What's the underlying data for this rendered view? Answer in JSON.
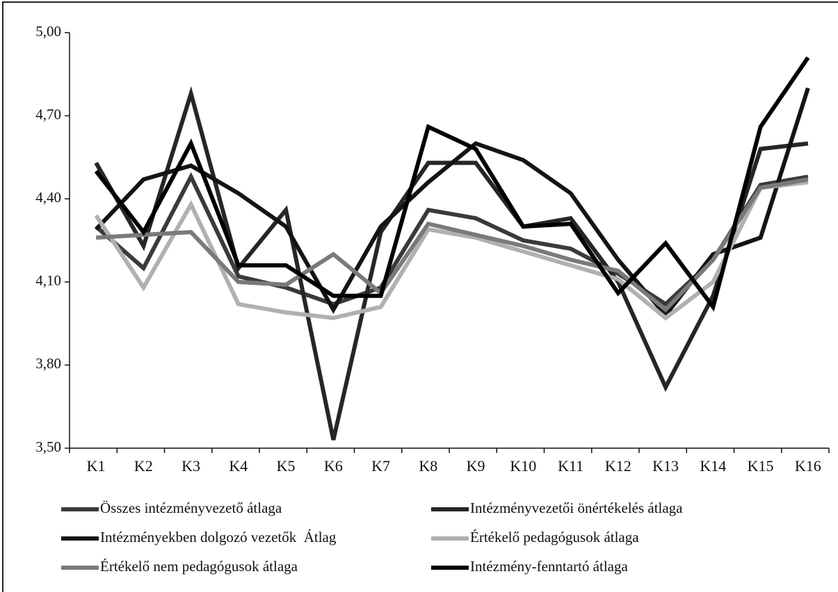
{
  "chart_data": {
    "type": "line",
    "categories": [
      "K1",
      "K2",
      "K3",
      "K4",
      "K5",
      "K6",
      "K7",
      "K8",
      "K9",
      "K10",
      "K11",
      "K12",
      "K13",
      "K14",
      "K15",
      "K16"
    ],
    "ylim": [
      3.5,
      5.0
    ],
    "yticks": [
      {
        "value": 3.5,
        "label": "3,50"
      },
      {
        "value": 3.8,
        "label": "3,80"
      },
      {
        "value": 4.1,
        "label": "4,10"
      },
      {
        "value": 4.4,
        "label": "4,40"
      },
      {
        "value": 4.7,
        "label": "4,70"
      },
      {
        "value": 5.0,
        "label": "5,00"
      }
    ],
    "legend": "bottom",
    "series": [
      {
        "name": "Összes intézményvezető átlaga",
        "color": "#3a3a3a",
        "values": [
          4.3,
          4.15,
          4.48,
          4.12,
          4.08,
          4.02,
          4.08,
          4.36,
          4.33,
          4.25,
          4.22,
          4.13,
          4.02,
          4.18,
          4.45,
          4.48
        ]
      },
      {
        "name": "Intézményvezetői önértékelés átlaga",
        "color": "#262626",
        "values": [
          4.53,
          4.23,
          4.78,
          4.15,
          4.36,
          3.53,
          4.28,
          4.53,
          4.53,
          4.3,
          4.33,
          4.1,
          3.72,
          4.05,
          4.58,
          4.6
        ]
      },
      {
        "name": "Intézményekben dolgozó vezetők  Átlag",
        "color": "#141414",
        "values": [
          4.29,
          4.47,
          4.52,
          4.42,
          4.3,
          4.0,
          4.3,
          4.46,
          4.6,
          4.54,
          4.42,
          4.18,
          3.98,
          4.2,
          4.26,
          4.8
        ]
      },
      {
        "name": "Értékelő pedagógusok átlaga",
        "color": "#b0b0b0",
        "values": [
          4.34,
          4.08,
          4.38,
          4.02,
          3.99,
          3.97,
          4.01,
          4.29,
          4.26,
          4.21,
          4.16,
          4.11,
          3.97,
          4.1,
          4.44,
          4.46
        ]
      },
      {
        "name": "Értékelő nem pedagógusok átlaga",
        "color": "#7a7a7a",
        "values": [
          4.26,
          4.27,
          4.28,
          4.1,
          4.09,
          4.2,
          4.06,
          4.31,
          4.27,
          4.23,
          4.18,
          4.14,
          4.0,
          4.18,
          4.44,
          4.47
        ]
      },
      {
        "name": "Intézmény-fenntartó átlaga",
        "color": "#000000",
        "values": [
          4.5,
          4.28,
          4.6,
          4.16,
          4.16,
          4.05,
          4.05,
          4.66,
          4.58,
          4.3,
          4.31,
          4.06,
          4.24,
          4.01,
          4.66,
          4.91
        ]
      }
    ]
  }
}
